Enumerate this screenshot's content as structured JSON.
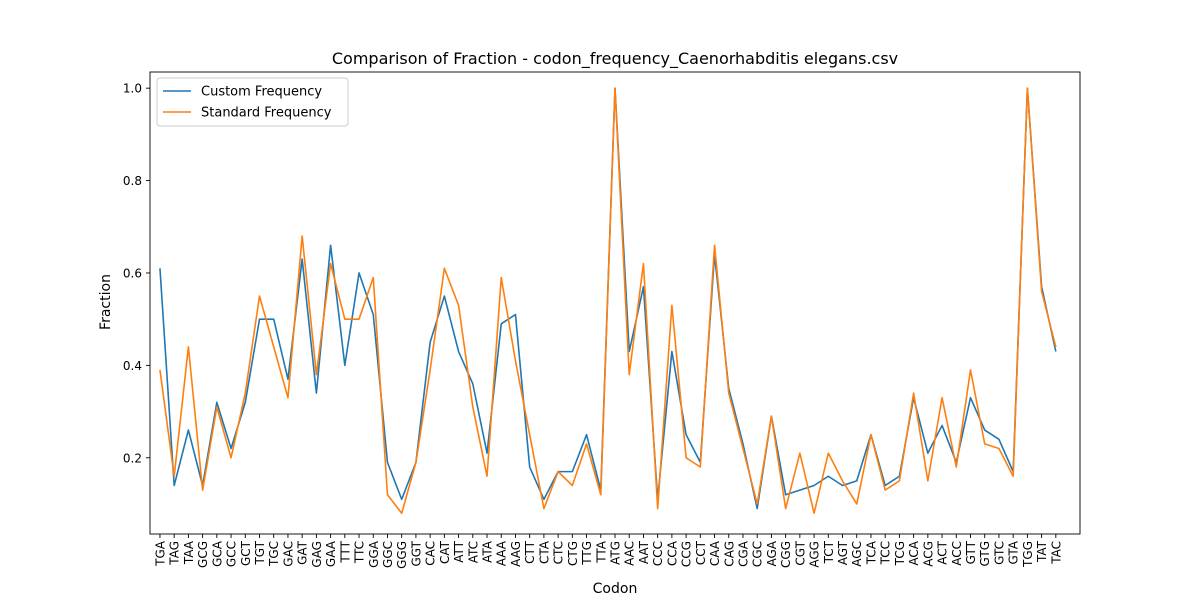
{
  "chart_data": {
    "type": "line",
    "title": "Comparison of Fraction - codon_frequency_Caenorhabditis elegans.csv",
    "xlabel": "Codon",
    "ylabel": "Fraction",
    "ylim": [
      0.035,
      1.035
    ],
    "yticks": [
      "0.2",
      "0.4",
      "0.6",
      "0.8",
      "1.0"
    ],
    "grid": false,
    "legend_position": "upper-left",
    "categories": [
      "TGA",
      "TAG",
      "TAA",
      "GCG",
      "GCA",
      "GCC",
      "GCT",
      "TGT",
      "TGC",
      "GAC",
      "GAT",
      "GAG",
      "GAA",
      "TTT",
      "TTC",
      "GGA",
      "GGC",
      "GGG",
      "GGT",
      "CAC",
      "CAT",
      "ATT",
      "ATC",
      "ATA",
      "AAA",
      "AAG",
      "CTT",
      "CTA",
      "CTC",
      "CTG",
      "TTG",
      "TTA",
      "ATG",
      "AAC",
      "AAT",
      "CCC",
      "CCA",
      "CCG",
      "CCT",
      "CAA",
      "CAG",
      "CGA",
      "CGC",
      "AGA",
      "CGG",
      "CGT",
      "AGG",
      "TCT",
      "AGT",
      "AGC",
      "TCA",
      "TCC",
      "TCG",
      "ACA",
      "ACG",
      "ACT",
      "ACC",
      "GTT",
      "GTG",
      "GTC",
      "GTA",
      "TGG",
      "TAT",
      "TAC"
    ],
    "series": [
      {
        "name": "Custom Frequency",
        "color": "#1f77b4",
        "values": [
          0.61,
          0.14,
          0.26,
          0.14,
          0.32,
          0.22,
          0.32,
          0.5,
          0.5,
          0.37,
          0.63,
          0.34,
          0.66,
          0.4,
          0.6,
          0.51,
          0.19,
          0.11,
          0.19,
          0.45,
          0.55,
          0.43,
          0.36,
          0.21,
          0.49,
          0.51,
          0.18,
          0.11,
          0.17,
          0.17,
          0.25,
          0.13,
          1.0,
          0.43,
          0.57,
          0.11,
          0.43,
          0.25,
          0.19,
          0.64,
          0.35,
          0.23,
          0.09,
          0.29,
          0.12,
          0.13,
          0.14,
          0.16,
          0.14,
          0.15,
          0.25,
          0.14,
          0.16,
          0.33,
          0.21,
          0.27,
          0.19,
          0.33,
          0.26,
          0.24,
          0.17,
          1.0,
          0.57,
          0.43
        ]
      },
      {
        "name": "Standard Frequency",
        "color": "#ff7f0e",
        "values": [
          0.39,
          0.16,
          0.44,
          0.13,
          0.31,
          0.2,
          0.34,
          0.55,
          0.44,
          0.33,
          0.68,
          0.38,
          0.62,
          0.5,
          0.5,
          0.59,
          0.12,
          0.08,
          0.19,
          0.39,
          0.61,
          0.53,
          0.31,
          0.16,
          0.59,
          0.41,
          0.25,
          0.09,
          0.17,
          0.14,
          0.23,
          0.12,
          1.0,
          0.38,
          0.62,
          0.09,
          0.53,
          0.2,
          0.18,
          0.66,
          0.34,
          0.22,
          0.1,
          0.29,
          0.09,
          0.21,
          0.08,
          0.21,
          0.15,
          0.1,
          0.25,
          0.13,
          0.15,
          0.34,
          0.15,
          0.33,
          0.18,
          0.39,
          0.23,
          0.22,
          0.16,
          1.0,
          0.56,
          0.44
        ]
      }
    ]
  }
}
